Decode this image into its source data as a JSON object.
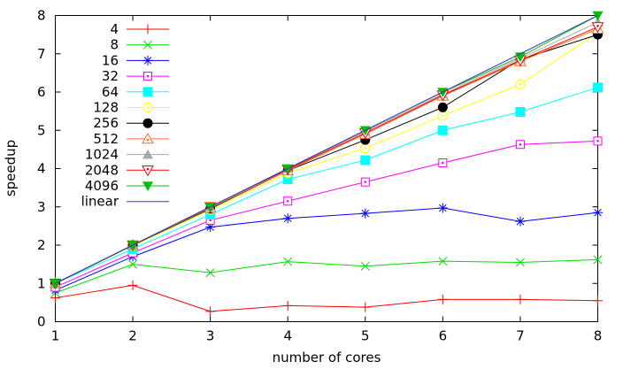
{
  "chart_data": {
    "type": "line",
    "title": "",
    "xlabel": "number of cores",
    "ylabel": "speedup",
    "xlim": [
      1,
      8
    ],
    "ylim": [
      0,
      8
    ],
    "xticks": [
      1,
      2,
      3,
      4,
      5,
      6,
      7,
      8
    ],
    "yticks": [
      0,
      1,
      2,
      3,
      4,
      5,
      6,
      7,
      8
    ],
    "grid": false,
    "legend_position": "top-left-inside",
    "x": [
      1,
      2,
      3,
      4,
      5,
      6,
      7,
      8
    ],
    "series": [
      {
        "name": "4",
        "color": "#ff0000",
        "marker": "plus",
        "values": [
          0.62,
          0.95,
          0.27,
          0.42,
          0.38,
          0.58,
          0.58,
          0.55
        ]
      },
      {
        "name": "8",
        "color": "#00dd00",
        "marker": "cross",
        "values": [
          0.75,
          1.5,
          1.28,
          1.57,
          1.45,
          1.58,
          1.55,
          1.62
        ]
      },
      {
        "name": "16",
        "color": "#0000ff",
        "marker": "asterisk",
        "values": [
          0.82,
          1.7,
          2.47,
          2.7,
          2.83,
          2.97,
          2.62,
          2.85
        ]
      },
      {
        "name": "32",
        "color": "#ff00ff",
        "marker": "square-open",
        "values": [
          0.9,
          1.8,
          2.65,
          3.15,
          3.65,
          4.15,
          4.63,
          4.72
        ]
      },
      {
        "name": "64",
        "color": "#00ffff",
        "marker": "square-filled",
        "values": [
          1.0,
          1.9,
          2.8,
          3.72,
          4.22,
          5.0,
          5.48,
          6.12
        ]
      },
      {
        "name": "128",
        "color": "#ffff00",
        "marker": "circle-open",
        "values": [
          1.0,
          1.98,
          2.92,
          3.88,
          4.53,
          5.38,
          6.2,
          7.55
        ]
      },
      {
        "name": "256",
        "color": "#000000",
        "marker": "circle-filled",
        "values": [
          1.0,
          2.0,
          2.95,
          3.95,
          4.75,
          5.6,
          6.85,
          7.5
        ]
      },
      {
        "name": "512",
        "color": "#f07028",
        "marker": "triangle-up-open",
        "values": [
          1.0,
          2.0,
          2.97,
          3.95,
          4.9,
          5.9,
          6.8,
          7.65
        ]
      },
      {
        "name": "1024",
        "color": "#a8a8a8",
        "marker": "triangle-up-filled",
        "values": [
          1.0,
          2.0,
          3.0,
          4.0,
          4.97,
          5.95,
          6.88,
          7.82
        ]
      },
      {
        "name": "2048",
        "color": "#ff0000",
        "marker": "triangle-down-open",
        "values": [
          1.0,
          2.0,
          3.0,
          3.98,
          4.93,
          5.92,
          6.83,
          7.7
        ]
      },
      {
        "name": "4096",
        "color": "#00c000",
        "marker": "triangle-down-filled",
        "values": [
          1.0,
          2.0,
          3.0,
          4.0,
          5.0,
          6.0,
          6.92,
          8.0
        ]
      },
      {
        "name": "linear",
        "color": "#3838cc",
        "marker": "none",
        "values": [
          1,
          2,
          3,
          4,
          5,
          6,
          7,
          8
        ]
      }
    ]
  }
}
